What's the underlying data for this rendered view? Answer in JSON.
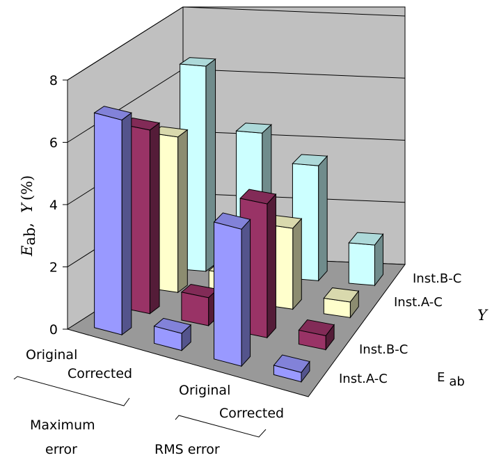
{
  "chart_data": {
    "type": "bar",
    "subtype": "3d-column",
    "ylim": [
      0,
      8
    ],
    "y_ticks": [
      "0",
      "2",
      "4",
      "6",
      "8"
    ],
    "ylabel": {
      "e_part": "E",
      "e_sub": "ab",
      "sep": ",",
      "y_part": "Y",
      "unit": "(%)"
    },
    "categories": [
      "Original",
      "Corrected",
      "Original",
      "Corrected"
    ],
    "category_groups": [
      {
        "label_line1": "Maximum",
        "label_line2": "error",
        "categories": [
          0,
          1
        ]
      },
      {
        "label_line1": "RMS error",
        "label_line2": "",
        "categories": [
          2,
          3
        ]
      }
    ],
    "depth_groups": [
      {
        "label": "E",
        "label_sub": "ab",
        "series": [
          0,
          1
        ]
      },
      {
        "label": "Y",
        "label_sub": "",
        "series": [
          2,
          3
        ]
      }
    ],
    "series": [
      {
        "name": "Inst.A-C",
        "color": "#9999ff",
        "values": [
          6.9,
          0.55,
          4.4,
          0.3
        ]
      },
      {
        "name": "Inst.B-C",
        "color": "#993366",
        "values": [
          5.9,
          0.9,
          4.3,
          0.45
        ]
      },
      {
        "name": "Inst.A-C",
        "color": "#ffffcc",
        "values": [
          5.0,
          0.85,
          2.6,
          0.5
        ]
      },
      {
        "name": "Inst.B-C",
        "color": "#ccffff",
        "values": [
          6.6,
          4.6,
          3.7,
          1.3
        ]
      }
    ],
    "grid": true,
    "floor_color": "#999999",
    "wall_color": "#c0c0c0"
  }
}
